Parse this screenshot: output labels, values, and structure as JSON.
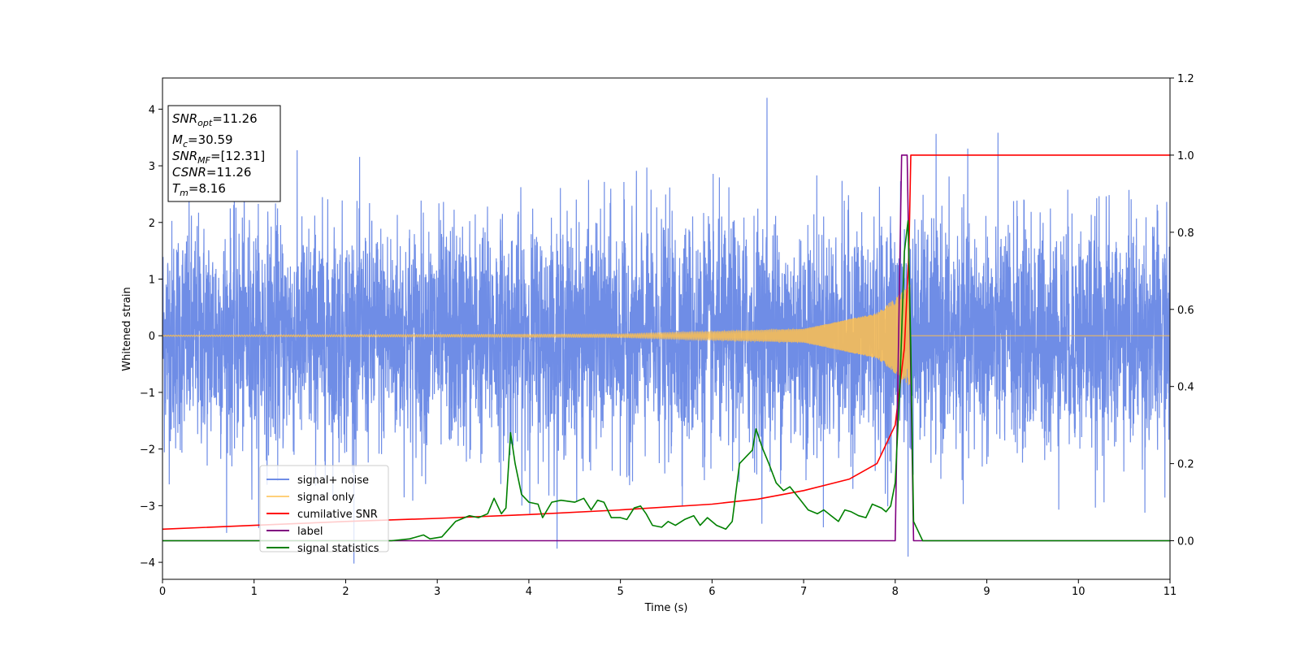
{
  "chart_data": {
    "type": "line",
    "xlabel": "Time (s)",
    "ylabel": "Whitened strain",
    "xlim": [
      0,
      11
    ],
    "ylim": [
      -4.3,
      4.55
    ],
    "y2lim": [
      -0.1,
      1.2
    ],
    "x_ticks": [
      0,
      1,
      2,
      3,
      4,
      5,
      6,
      7,
      8,
      9,
      10,
      11
    ],
    "y_ticks": [
      -4,
      -3,
      -2,
      -1,
      0,
      1,
      2,
      3,
      4
    ],
    "y2_ticks": [
      "0.0",
      "0.2",
      "0.4",
      "0.6",
      "0.8",
      "1.0",
      "1.2"
    ],
    "grid": false,
    "legend_placement": "lower-left",
    "info_box": {
      "snr_opt": {
        "label": "SNR",
        "sub": "opt",
        "value": "=11.26"
      },
      "mc": {
        "label": "M",
        "sub": "c",
        "value": "=30.59"
      },
      "snr_mf": {
        "label": "SNR",
        "sub": "MF",
        "value": "=[12.31]"
      },
      "csnr": {
        "label": "CSNR",
        "value": "=11.26"
      },
      "tm": {
        "label": "T",
        "sub": "m",
        "value": "=8.16"
      }
    },
    "series": [
      {
        "name": "signal+ noise",
        "color": "#6f8de6",
        "axis": "left",
        "description_values": "white noise band, typical range -2.5 to 2.5, extremes about -3.9 to 4.2",
        "noise_std": 1.0,
        "extreme_max": 4.2,
        "extreme_min": -3.9
      },
      {
        "name": "signal only",
        "color": "#ffc04d",
        "axis": "left",
        "chirp": {
          "t_merge": 8.16,
          "amp_at": [
            [
              0,
              0.01
            ],
            [
              5,
              0.03
            ],
            [
              7,
              0.12
            ],
            [
              7.8,
              0.4
            ],
            [
              8.1,
              0.8
            ],
            [
              8.16,
              0.9
            ]
          ]
        }
      },
      {
        "name": "cumilative SNR",
        "color": "#ff0000",
        "axis": "right",
        "points": [
          [
            0,
            0.03
          ],
          [
            1,
            0.04
          ],
          [
            2,
            0.05
          ],
          [
            3,
            0.058
          ],
          [
            4,
            0.068
          ],
          [
            5,
            0.08
          ],
          [
            6,
            0.095
          ],
          [
            6.5,
            0.108
          ],
          [
            7,
            0.13
          ],
          [
            7.5,
            0.16
          ],
          [
            7.8,
            0.2
          ],
          [
            8.0,
            0.3
          ],
          [
            8.1,
            0.5
          ],
          [
            8.15,
            0.75
          ],
          [
            8.17,
            1.0
          ],
          [
            11,
            1.0
          ]
        ]
      },
      {
        "name": "label",
        "color": "#800080",
        "axis": "right",
        "points": [
          [
            0,
            0.0
          ],
          [
            8.0,
            0.0
          ],
          [
            8.07,
            1.0
          ],
          [
            8.13,
            1.0
          ],
          [
            8.2,
            0.0
          ],
          [
            11,
            0.0
          ]
        ]
      },
      {
        "name": "signal statistics",
        "color": "#008000",
        "axis": "right",
        "points": [
          [
            0,
            0.0
          ],
          [
            2.5,
            0.0
          ],
          [
            2.7,
            0.005
          ],
          [
            2.85,
            0.015
          ],
          [
            2.92,
            0.005
          ],
          [
            3.05,
            0.01
          ],
          [
            3.2,
            0.05
          ],
          [
            3.35,
            0.065
          ],
          [
            3.45,
            0.06
          ],
          [
            3.55,
            0.07
          ],
          [
            3.62,
            0.11
          ],
          [
            3.7,
            0.07
          ],
          [
            3.75,
            0.085
          ],
          [
            3.8,
            0.28
          ],
          [
            3.85,
            0.2
          ],
          [
            3.92,
            0.12
          ],
          [
            4.0,
            0.1
          ],
          [
            4.1,
            0.095
          ],
          [
            4.15,
            0.06
          ],
          [
            4.25,
            0.1
          ],
          [
            4.35,
            0.105
          ],
          [
            4.5,
            0.1
          ],
          [
            4.6,
            0.11
          ],
          [
            4.68,
            0.08
          ],
          [
            4.75,
            0.105
          ],
          [
            4.82,
            0.1
          ],
          [
            4.9,
            0.06
          ],
          [
            5.0,
            0.06
          ],
          [
            5.07,
            0.055
          ],
          [
            5.15,
            0.085
          ],
          [
            5.22,
            0.09
          ],
          [
            5.28,
            0.07
          ],
          [
            5.35,
            0.04
          ],
          [
            5.45,
            0.035
          ],
          [
            5.52,
            0.05
          ],
          [
            5.6,
            0.04
          ],
          [
            5.7,
            0.055
          ],
          [
            5.8,
            0.065
          ],
          [
            5.87,
            0.04
          ],
          [
            5.95,
            0.06
          ],
          [
            6.05,
            0.04
          ],
          [
            6.15,
            0.03
          ],
          [
            6.22,
            0.05
          ],
          [
            6.3,
            0.2
          ],
          [
            6.38,
            0.22
          ],
          [
            6.44,
            0.235
          ],
          [
            6.48,
            0.29
          ],
          [
            6.55,
            0.24
          ],
          [
            6.62,
            0.2
          ],
          [
            6.7,
            0.15
          ],
          [
            6.78,
            0.13
          ],
          [
            6.85,
            0.14
          ],
          [
            6.95,
            0.11
          ],
          [
            7.05,
            0.08
          ],
          [
            7.15,
            0.07
          ],
          [
            7.22,
            0.08
          ],
          [
            7.3,
            0.065
          ],
          [
            7.38,
            0.05
          ],
          [
            7.45,
            0.08
          ],
          [
            7.52,
            0.075
          ],
          [
            7.6,
            0.065
          ],
          [
            7.68,
            0.06
          ],
          [
            7.75,
            0.095
          ],
          [
            7.85,
            0.085
          ],
          [
            7.9,
            0.075
          ],
          [
            7.95,
            0.09
          ],
          [
            8.0,
            0.15
          ],
          [
            8.05,
            0.4
          ],
          [
            8.1,
            0.75
          ],
          [
            8.14,
            0.83
          ],
          [
            8.17,
            0.5
          ],
          [
            8.2,
            0.05
          ],
          [
            8.3,
            0.0
          ],
          [
            11,
            0.0
          ]
        ]
      }
    ]
  }
}
